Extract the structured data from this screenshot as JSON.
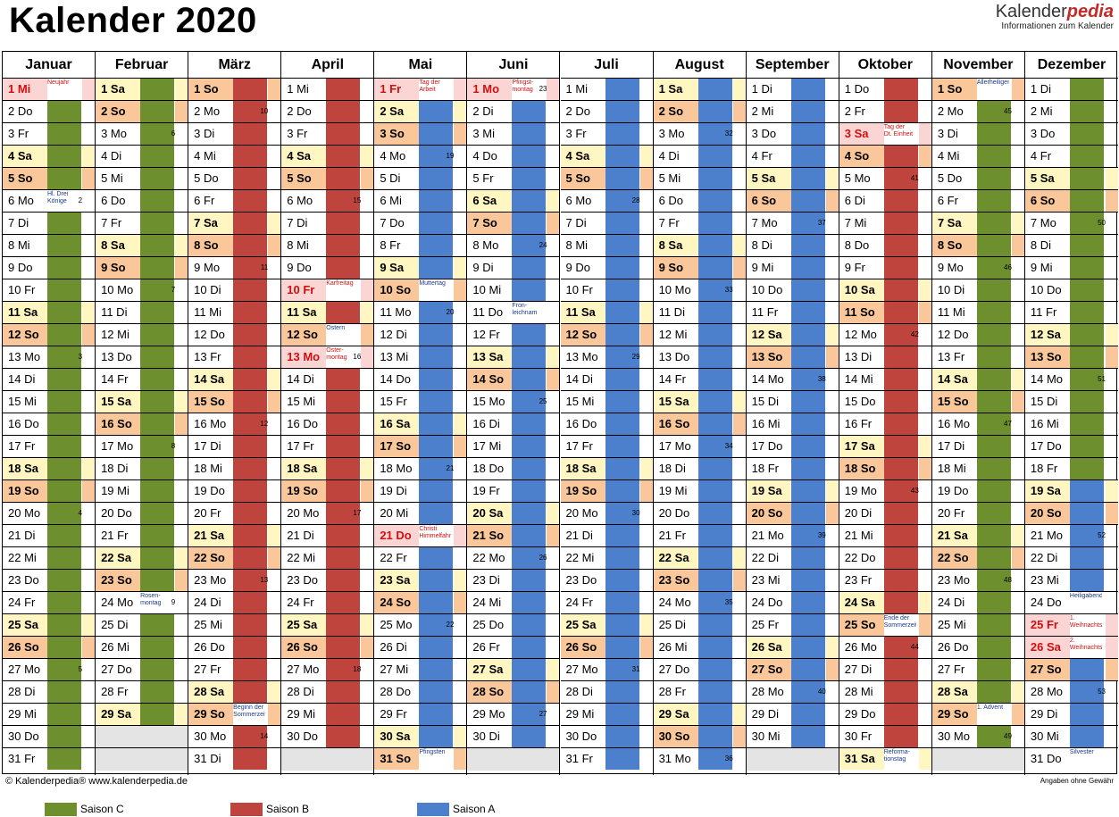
{
  "title": "Kalender 2020",
  "logo": {
    "brand_a": "Kalender",
    "brand_b": "pedia",
    "tagline": "Informationen zum Kalender"
  },
  "footer": {
    "copyright": "© Kalenderpedia®   www.kalenderpedia.de",
    "disclaimer": "Angaben ohne Gewähr"
  },
  "legend": [
    {
      "label": "Saison C",
      "color": "#6e8f2e"
    },
    {
      "label": "Saison B",
      "color": "#c0443e"
    },
    {
      "label": "Saison A",
      "color": "#4c80cc"
    }
  ],
  "months": [
    {
      "name": "Januar",
      "days": 31,
      "start": 2,
      "holidays": {
        "1": "Neujahr"
      },
      "notes": {
        "6": "Hl. Drei Könige"
      },
      "season_map": {
        "1-31": "C"
      },
      "weeks": {
        "6": 2,
        "13": 3,
        "20": 4,
        "27": 5
      }
    },
    {
      "name": "Februar",
      "days": 29,
      "start": 5,
      "holidays": {},
      "notes": {
        "24": "Rosen-montag"
      },
      "season_map": {
        "1-29": "C"
      },
      "weeks": {
        "3": 6,
        "10": 7,
        "17": 8,
        "24": 9
      }
    },
    {
      "name": "März",
      "days": 31,
      "start": 6,
      "holidays": {},
      "notes": {
        "29": "Beginn der Sommerzeit"
      },
      "season_map": {
        "1-31": "B"
      },
      "weeks": {
        "2": 10,
        "9": 11,
        "16": 12,
        "23": 13,
        "30": 14
      }
    },
    {
      "name": "April",
      "days": 30,
      "start": 2,
      "holidays": {
        "10": "Karfreitag",
        "13": "Oster-montag"
      },
      "notes": {
        "12": "Ostern"
      },
      "season_map": {
        "1-30": "B"
      },
      "weeks": {
        "6": 15,
        "13": 16,
        "20": 17,
        "27": 18
      }
    },
    {
      "name": "Mai",
      "days": 31,
      "start": 4,
      "holidays": {
        "1": "Tag der Arbeit",
        "21": "Christi Himmelfahrt"
      },
      "notes": {
        "10": "Muttertag",
        "31": "Pfingsten"
      },
      "season_map": {
        "1-31": "A"
      },
      "weeks": {
        "4": 19,
        "11": 20,
        "18": 21,
        "25": 22
      }
    },
    {
      "name": "Juni",
      "days": 30,
      "start": 0,
      "holidays": {
        "1": "Pfingst-montag"
      },
      "notes": {
        "11": "Fron-leichnam"
      },
      "season_map": {
        "1-30": "A"
      },
      "weeks": {
        "1": 23,
        "8": 24,
        "15": 25,
        "22": 26,
        "29": 27
      }
    },
    {
      "name": "Juli",
      "days": 31,
      "start": 2,
      "holidays": {},
      "notes": {},
      "season_map": {
        "1-31": "A"
      },
      "weeks": {
        "6": 28,
        "13": 29,
        "20": 30,
        "27": 31
      }
    },
    {
      "name": "August",
      "days": 31,
      "start": 5,
      "holidays": {},
      "notes": {},
      "season_map": {
        "1-31": "A"
      },
      "weeks": {
        "3": 32,
        "10": 33,
        "17": 34,
        "24": 35,
        "31": 36
      }
    },
    {
      "name": "September",
      "days": 30,
      "start": 1,
      "holidays": {},
      "notes": {},
      "season_map": {
        "1-30": "A"
      },
      "weeks": {
        "7": 37,
        "14": 38,
        "21": 39,
        "28": 40
      }
    },
    {
      "name": "Oktober",
      "days": 31,
      "start": 3,
      "holidays": {
        "3": "Tag der Dt. Einheit"
      },
      "notes": {
        "25": "Ende der Sommerzeit",
        "31": "Reforma-tionstag"
      },
      "season_map": {
        "1-31": "B"
      },
      "weeks": {
        "5": 41,
        "12": 42,
        "19": 43,
        "26": 44
      }
    },
    {
      "name": "November",
      "days": 30,
      "start": 6,
      "holidays": {},
      "notes": {
        "1": "Allerheiligen",
        "29": "1. Advent"
      },
      "season_map": {
        "1-30": "C"
      },
      "weeks": {
        "2": 45,
        "9": 46,
        "16": 47,
        "23": 48,
        "30": 49
      }
    },
    {
      "name": "Dezember",
      "days": 31,
      "start": 1,
      "holidays": {
        "25": "1. Weihnachtstag",
        "26": "2. Weihnachtstag"
      },
      "notes": {
        "24": "Heiligabend",
        "31": "Silvester"
      },
      "season_map": {
        "1-18": "C",
        "19-31": "A"
      },
      "weeks": {
        "7": 50,
        "14": 51,
        "21": 52,
        "28": 53
      }
    }
  ],
  "weekday_abbr": [
    "Mo",
    "Di",
    "Mi",
    "Do",
    "Fr",
    "Sa",
    "So"
  ]
}
